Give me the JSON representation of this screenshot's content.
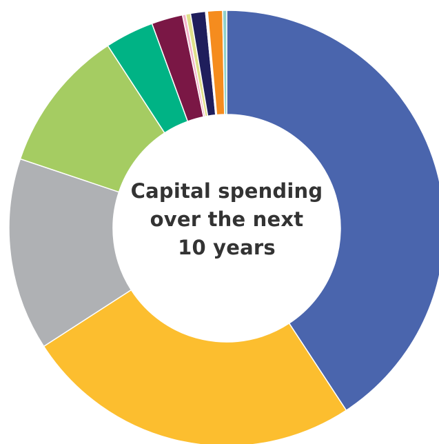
{
  "chart_data": {
    "type": "pie",
    "donut": true,
    "title": "",
    "center_text_lines": [
      "Capital spending",
      "over the next",
      "10 years"
    ],
    "legend": "none",
    "slices": [
      {
        "value": 40.55,
        "color": "#4a65ad"
      },
      {
        "value": 25.0,
        "color": "#fcbe2f"
      },
      {
        "value": 14.2,
        "color": "#afb1b4"
      },
      {
        "value": 10.6,
        "color": "#a5cc62"
      },
      {
        "value": 3.6,
        "color": "#00b385"
      },
      {
        "value": 2.3,
        "color": "#7a1745"
      },
      {
        "value": 0.25,
        "color": "#f2b3c9"
      },
      {
        "value": 0.35,
        "color": "#dfe08a"
      },
      {
        "value": 1.1,
        "color": "#1f1e5c"
      },
      {
        "value": 0.15,
        "color": "#ffffff"
      },
      {
        "value": 1.1,
        "color": "#f58c1e"
      },
      {
        "value": 0.3,
        "color": "#8fd1cc"
      }
    ]
  }
}
